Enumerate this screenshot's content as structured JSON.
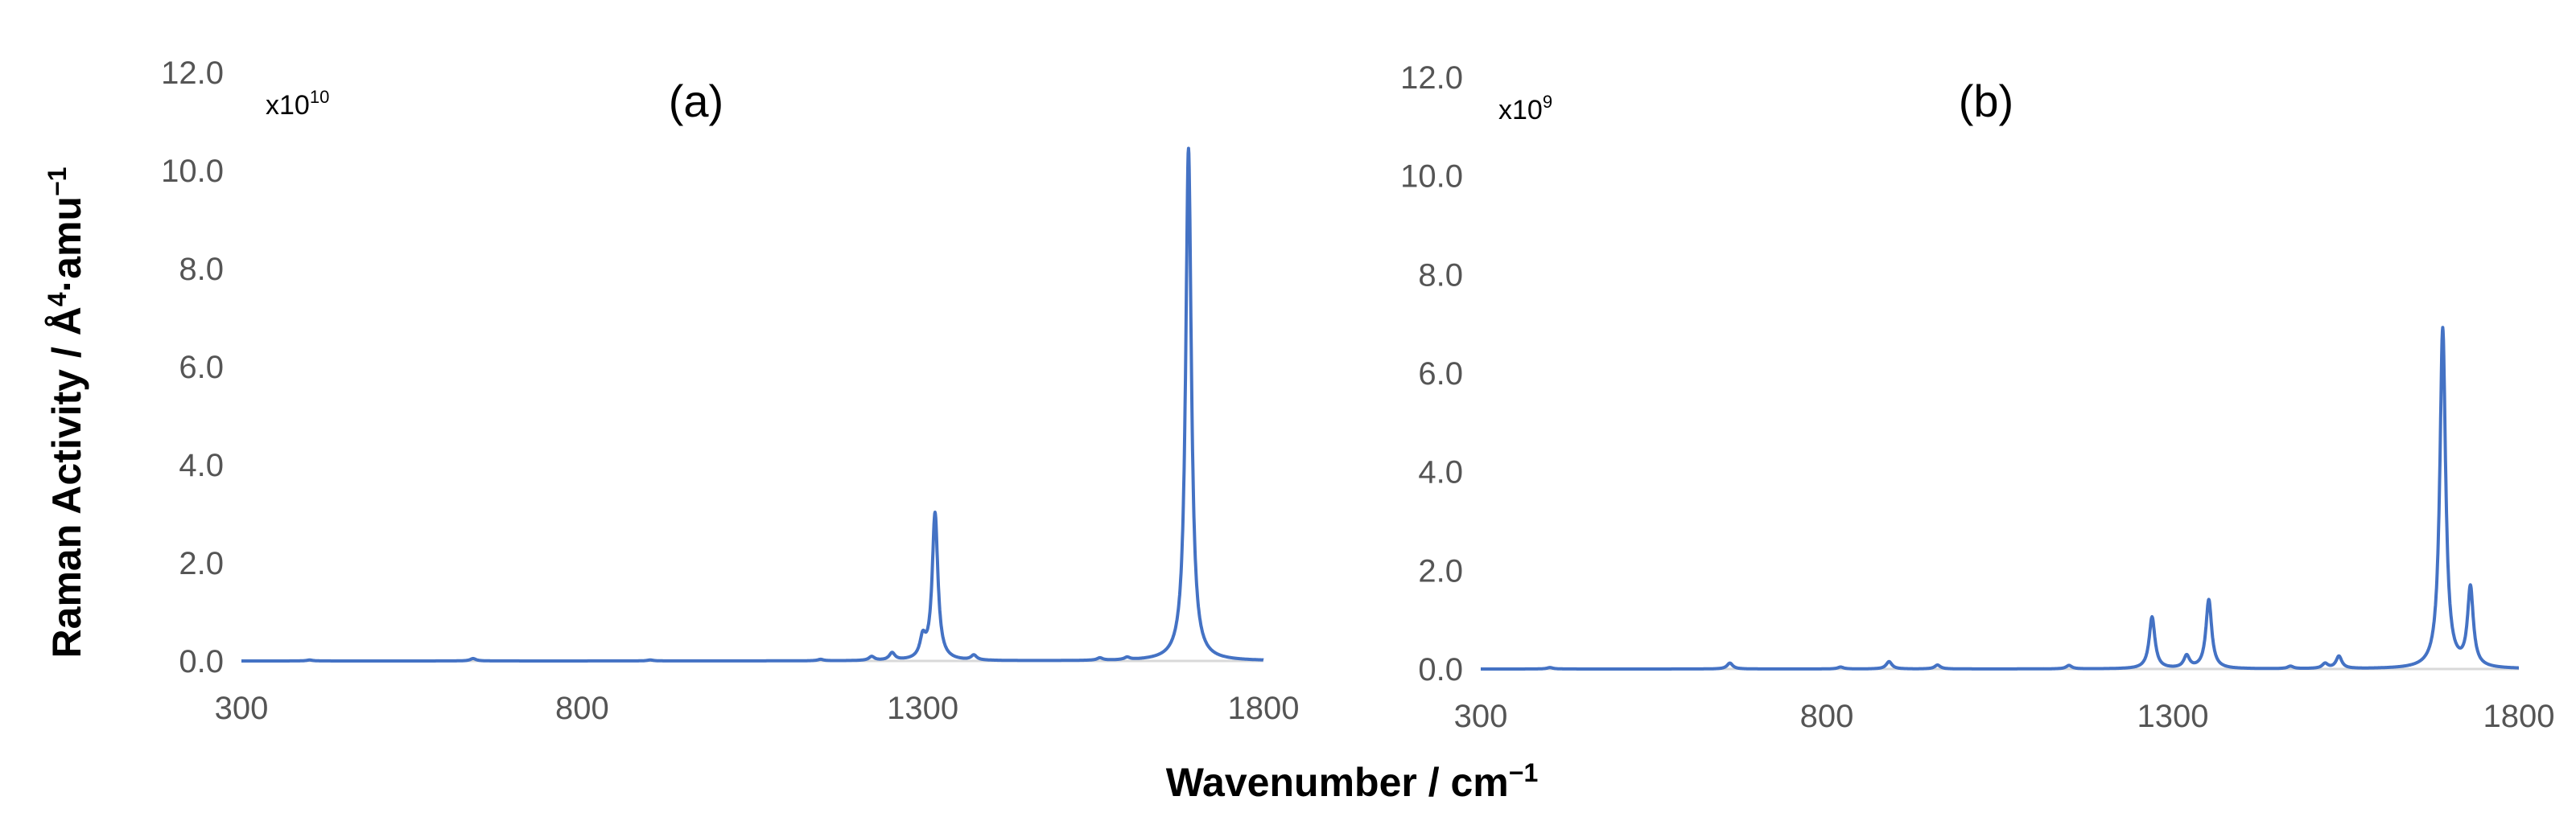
{
  "figure": {
    "ylabel_text": "Raman Activity / Å",
    "ylabel_sup1": "4",
    "ylabel_mid": "·amu",
    "ylabel_sup2": "−1",
    "xlabel_text": "Wavenumber / cm",
    "xlabel_sup": "−1"
  },
  "colors": {
    "line": "#4472C4",
    "axis": "#D9D9D9",
    "tick_text": "#555555"
  },
  "chart_data": [
    {
      "type": "line",
      "panel_label": "(a)",
      "scale_base": "x10",
      "scale_exp": "10",
      "xlim": [
        300,
        1800
      ],
      "ylim": [
        0,
        12
      ],
      "xticks": [
        "300",
        "800",
        "1300",
        "1800"
      ],
      "yticks": [
        "0.0",
        "2.0",
        "4.0",
        "6.0",
        "8.0",
        "10.0",
        "12.0"
      ],
      "grid": false,
      "series_color": "#4472C4",
      "peaks": [
        {
          "x": 400,
          "y": 0.02
        },
        {
          "x": 640,
          "y": 0.05
        },
        {
          "x": 900,
          "y": 0.02
        },
        {
          "x": 1150,
          "y": 0.03
        },
        {
          "x": 1225,
          "y": 0.08
        },
        {
          "x": 1255,
          "y": 0.15
        },
        {
          "x": 1300,
          "y": 0.4
        },
        {
          "x": 1318,
          "y": 3.0
        },
        {
          "x": 1375,
          "y": 0.1
        },
        {
          "x": 1560,
          "y": 0.05
        },
        {
          "x": 1600,
          "y": 0.05
        },
        {
          "x": 1690,
          "y": 10.45
        }
      ]
    },
    {
      "type": "line",
      "panel_label": "(b)",
      "scale_base": "x10",
      "scale_exp": "9",
      "xlim": [
        300,
        1800
      ],
      "ylim": [
        0,
        12
      ],
      "xticks": [
        "300",
        "800",
        "1300",
        "1800"
      ],
      "yticks": [
        "0.0",
        "2.0",
        "4.0",
        "6.0",
        "8.0",
        "10.0",
        "12.0"
      ],
      "grid": false,
      "series_color": "#4472C4",
      "peaks": [
        {
          "x": 400,
          "y": 0.03
        },
        {
          "x": 660,
          "y": 0.12
        },
        {
          "x": 820,
          "y": 0.04
        },
        {
          "x": 890,
          "y": 0.15
        },
        {
          "x": 960,
          "y": 0.08
        },
        {
          "x": 1150,
          "y": 0.07
        },
        {
          "x": 1270,
          "y": 1.05
        },
        {
          "x": 1320,
          "y": 0.25
        },
        {
          "x": 1352,
          "y": 1.4
        },
        {
          "x": 1470,
          "y": 0.05
        },
        {
          "x": 1520,
          "y": 0.1
        },
        {
          "x": 1540,
          "y": 0.25
        },
        {
          "x": 1690,
          "y": 6.9
        },
        {
          "x": 1730,
          "y": 1.6
        }
      ]
    }
  ]
}
